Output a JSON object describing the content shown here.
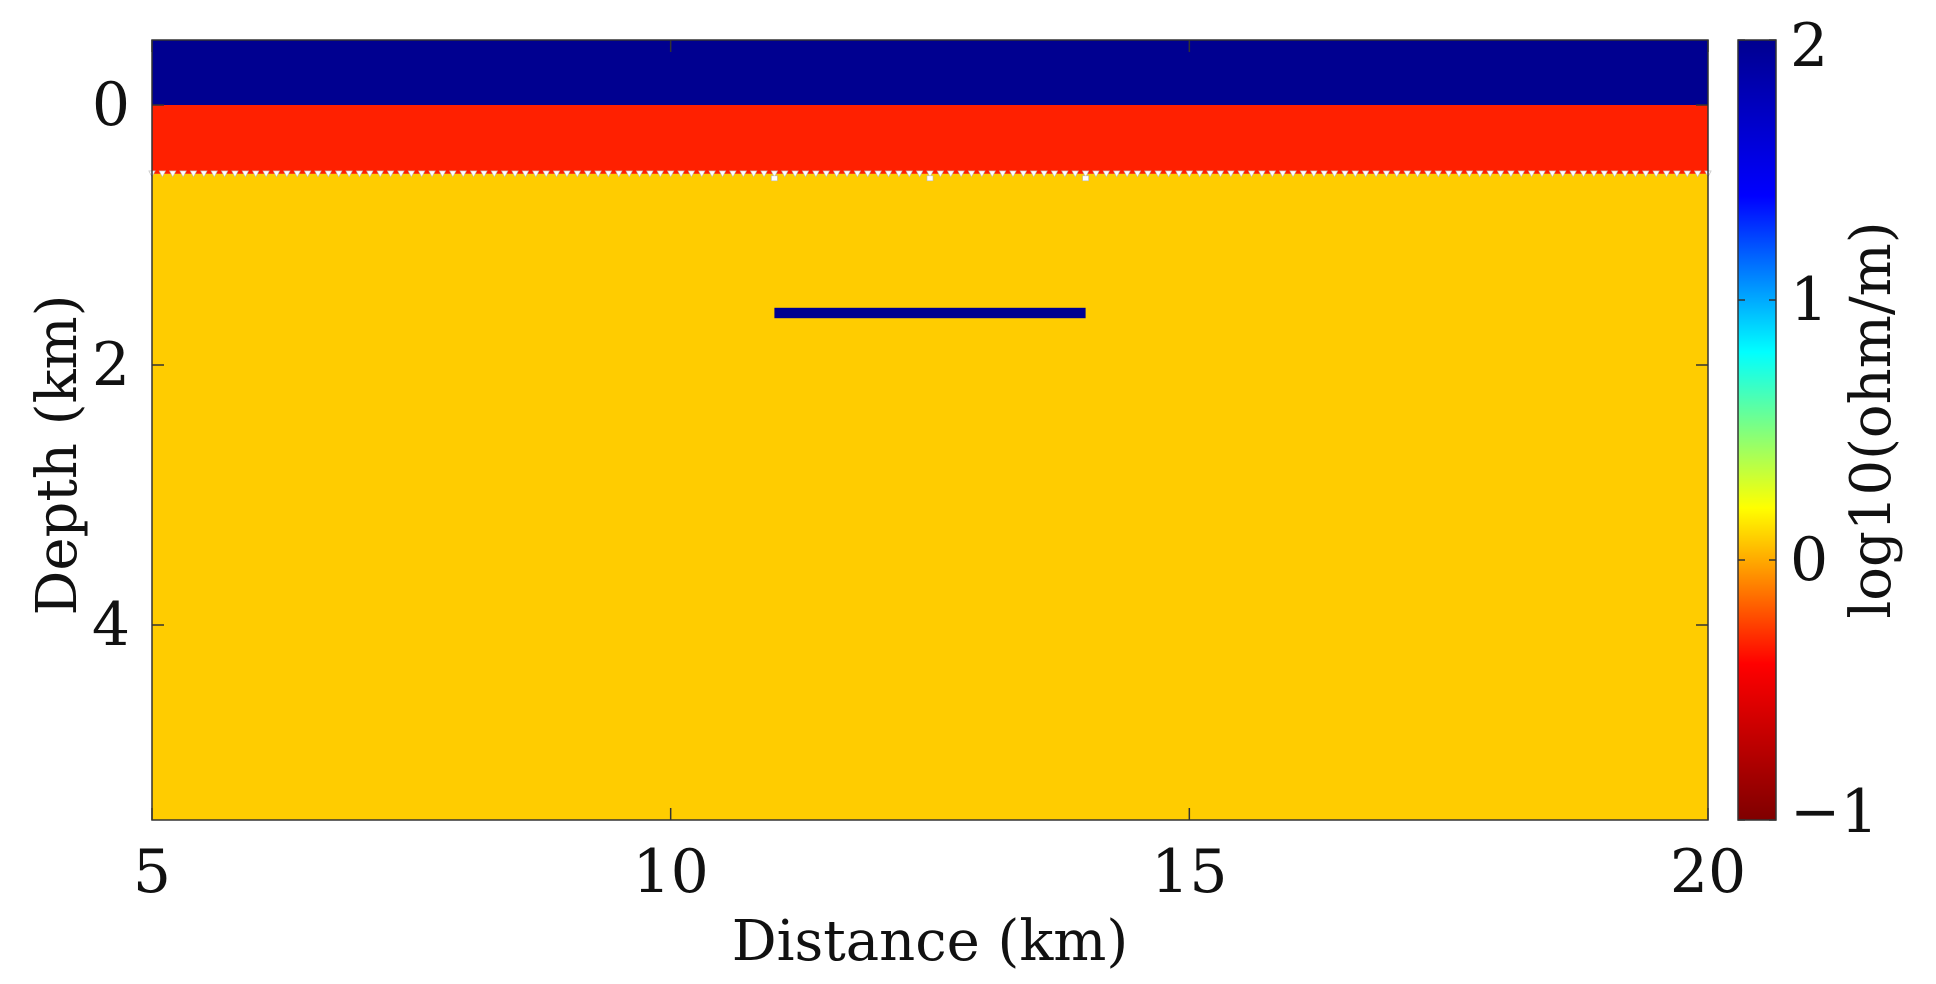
{
  "chart_data": {
    "type": "heatmap",
    "title": "",
    "xlabel": "Distance (km)",
    "ylabel": "Depth (km)",
    "xlim": [
      5,
      20
    ],
    "ylim": [
      5.5,
      -0.5
    ],
    "y_direction": "depth increasing downward",
    "xticks": [
      5,
      10,
      15,
      20
    ],
    "yticks": [
      0,
      2,
      4
    ],
    "grid": false,
    "colorbar": {
      "label": "log10(ohm/m)",
      "range": [
        -1,
        2
      ],
      "ticks": [
        -1,
        0,
        1,
        2
      ],
      "colormap": "jet",
      "colormap_stops": [
        "#7f0000",
        "#ff0000",
        "#ffff00",
        "#00ffff",
        "#0000ff",
        "#00008f"
      ]
    },
    "regions": [
      {
        "name": "sea water",
        "x": [
          5,
          20
        ],
        "depth": [
          -0.5,
          0.0
        ],
        "value": 2.0,
        "color": "#000090"
      },
      {
        "name": "top layer",
        "x": [
          5,
          20
        ],
        "depth": [
          0.0,
          0.53
        ],
        "value": -0.6,
        "color": "#ff2000"
      },
      {
        "name": "background",
        "x": [
          5,
          20
        ],
        "depth": [
          0.53,
          5.5
        ],
        "value": 0.0,
        "color": "#ffcc00"
      },
      {
        "name": "resistive body",
        "x": [
          11,
          14
        ],
        "depth": [
          1.56,
          1.64
        ],
        "value": 2.0,
        "color": "#000090"
      }
    ],
    "receivers": {
      "depth": 0.53,
      "x_start": 5.0,
      "x_end": 20.0,
      "spacing": 0.1,
      "marker": "white triangle"
    },
    "sources": [
      {
        "x": 11.0,
        "depth": 0.56
      },
      {
        "x": 12.5,
        "depth": 0.56
      },
      {
        "x": 14.0,
        "depth": 0.56
      }
    ],
    "tick_labels": {
      "x": [
        "5",
        "10",
        "15",
        "20"
      ],
      "y": [
        "0",
        "2",
        "4"
      ],
      "colorbar": [
        "−1",
        "0",
        "1",
        "2"
      ]
    }
  }
}
